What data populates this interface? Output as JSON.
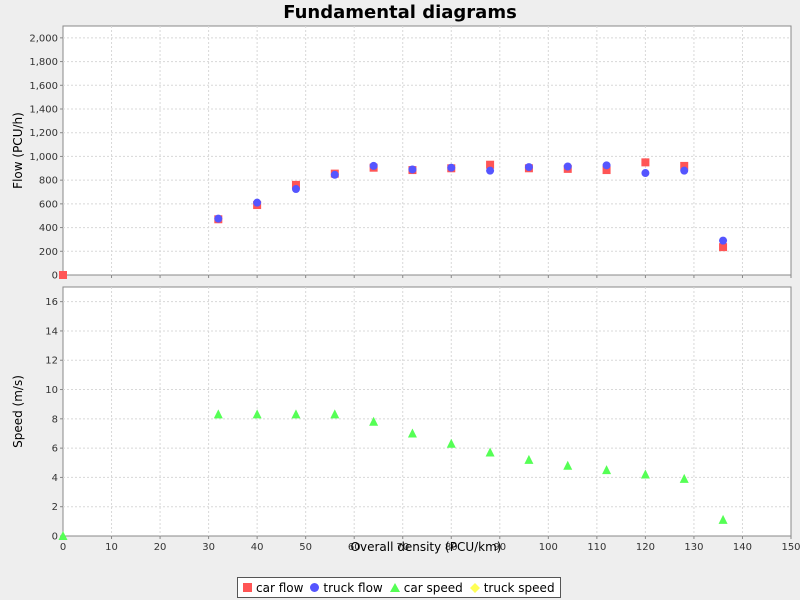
{
  "chart_data": {
    "title": "Fundamental diagrams",
    "type": "scatter",
    "xlabel": "Overall density (PCU/km)",
    "xlim": [
      0,
      150
    ],
    "xticks": [
      0,
      10,
      20,
      30,
      40,
      50,
      60,
      70,
      80,
      90,
      100,
      110,
      120,
      130,
      140,
      150
    ],
    "xtick_labels": [
      "0",
      "10",
      "20",
      "30",
      "40",
      "50",
      "60",
      "70",
      "80",
      "90",
      "100",
      "110",
      "120",
      "130",
      "140",
      "150"
    ],
    "grid": true,
    "legend_position": "bottom",
    "subplots": [
      {
        "ylabel": "Flow (PCU/h)",
        "ylim": [
          0,
          2100
        ],
        "yticks": [
          0,
          200,
          400,
          600,
          800,
          1000,
          1200,
          1400,
          1600,
          1800,
          2000
        ],
        "ytick_labels": [
          "0",
          "200",
          "400",
          "600",
          "800",
          "1,000",
          "1,200",
          "1,400",
          "1,600",
          "1,800",
          "2,000"
        ],
        "series": [
          {
            "name": "car flow",
            "marker": "square",
            "color": "#ff5555",
            "points": [
              [
                0,
                0
              ],
              [
                32,
                470
              ],
              [
                40,
                590
              ],
              [
                48,
                760
              ],
              [
                56,
                855
              ],
              [
                64,
                905
              ],
              [
                72,
                885
              ],
              [
                80,
                900
              ],
              [
                88,
                930
              ],
              [
                96,
                900
              ],
              [
                104,
                895
              ],
              [
                112,
                885
              ],
              [
                120,
                950
              ],
              [
                128,
                920
              ],
              [
                136,
                235
              ]
            ]
          },
          {
            "name": "truck flow",
            "marker": "circle",
            "color": "#5555ff",
            "points": [
              [
                32,
                475
              ],
              [
                40,
                610
              ],
              [
                48,
                725
              ],
              [
                56,
                845
              ],
              [
                64,
                920
              ],
              [
                72,
                890
              ],
              [
                80,
                905
              ],
              [
                88,
                880
              ],
              [
                96,
                910
              ],
              [
                104,
                915
              ],
              [
                112,
                925
              ],
              [
                120,
                860
              ],
              [
                128,
                880
              ],
              [
                136,
                290
              ]
            ]
          }
        ]
      },
      {
        "ylabel": "Speed (m/s)",
        "ylim": [
          0,
          17
        ],
        "yticks": [
          0,
          2,
          4,
          6,
          8,
          10,
          12,
          14,
          16
        ],
        "ytick_labels": [
          "0",
          "2",
          "4",
          "6",
          "8",
          "10",
          "12",
          "14",
          "16"
        ],
        "series": [
          {
            "name": "car speed",
            "marker": "triangle",
            "color": "#55ff55",
            "points": [
              [
                0,
                0
              ],
              [
                32,
                8.3
              ],
              [
                40,
                8.3
              ],
              [
                48,
                8.3
              ],
              [
                56,
                8.3
              ],
              [
                64,
                7.8
              ],
              [
                72,
                7.0
              ],
              [
                80,
                6.3
              ],
              [
                88,
                5.7
              ],
              [
                96,
                5.2
              ],
              [
                104,
                4.8
              ],
              [
                112,
                4.5
              ],
              [
                120,
                4.2
              ],
              [
                128,
                3.9
              ],
              [
                136,
                1.1
              ]
            ]
          },
          {
            "name": "truck speed",
            "marker": "diamond",
            "color": "#ffff55",
            "points": []
          }
        ]
      }
    ],
    "legend": [
      {
        "label": "car flow",
        "marker": "square",
        "color": "#ff5555"
      },
      {
        "label": "truck flow",
        "marker": "circle",
        "color": "#5555ff"
      },
      {
        "label": "car speed",
        "marker": "triangle",
        "color": "#55ff55"
      },
      {
        "label": "truck speed",
        "marker": "diamond",
        "color": "#ffff55"
      }
    ]
  }
}
